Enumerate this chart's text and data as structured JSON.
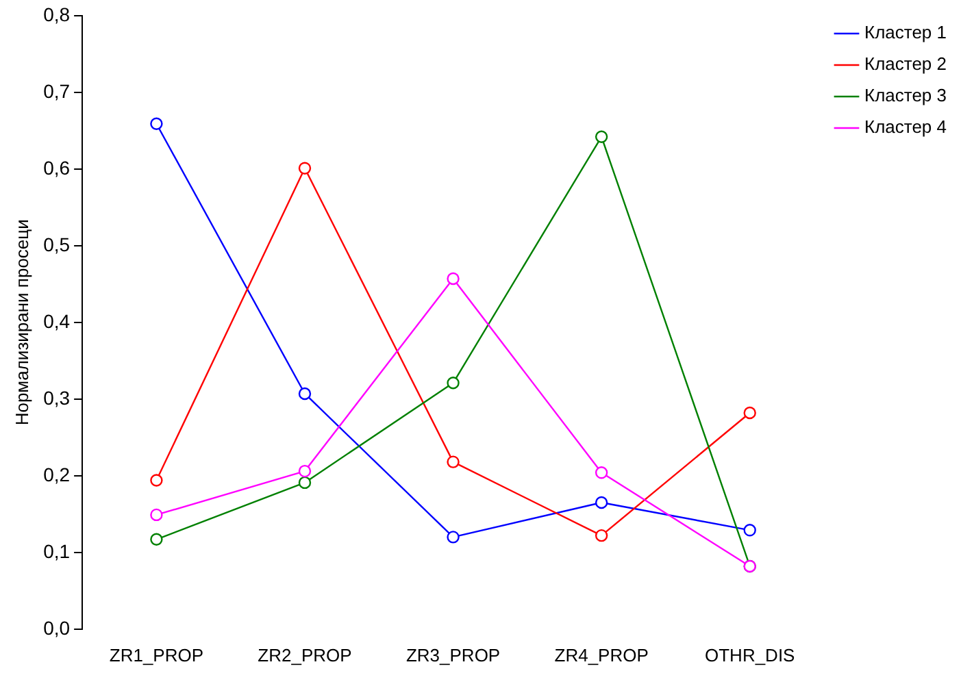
{
  "chart_data": {
    "type": "line",
    "ylabel": "Нормализирани просеци",
    "categories": [
      "ZR1_PROP",
      "ZR2_PROP",
      "ZR3_PROP",
      "ZR4_PROP",
      "OTHR_DIS"
    ],
    "series": [
      {
        "name": "Кластер 1",
        "color": "#0000ff",
        "values": [
          0.659,
          0.307,
          0.12,
          0.165,
          0.129
        ]
      },
      {
        "name": "Кластер 2",
        "color": "#ff0000",
        "values": [
          0.194,
          0.601,
          0.218,
          0.122,
          0.282
        ]
      },
      {
        "name": "Кластер 3",
        "color": "#008000",
        "values": [
          0.117,
          0.191,
          0.321,
          0.642,
          0.082
        ]
      },
      {
        "name": "Кластер 4",
        "color": "#ff00ff",
        "values": [
          0.149,
          0.206,
          0.457,
          0.204,
          0.082
        ]
      }
    ],
    "ylim": [
      0,
      0.8
    ],
    "yticks": [
      {
        "value": 0,
        "label": "0,0"
      },
      {
        "value": 0.1,
        "label": "0,1"
      },
      {
        "value": 0.2,
        "label": "0,2"
      },
      {
        "value": 0.3,
        "label": "0,3"
      },
      {
        "value": 0.4,
        "label": "0,4"
      },
      {
        "value": 0.5,
        "label": "0,5"
      },
      {
        "value": 0.6,
        "label": "0,6"
      },
      {
        "value": 0.7,
        "label": "0,7"
      },
      {
        "value": 0.8,
        "label": "0,8"
      }
    ],
    "grid": false,
    "legend": "top right",
    "marker": "circle",
    "line_style": "solid"
  }
}
